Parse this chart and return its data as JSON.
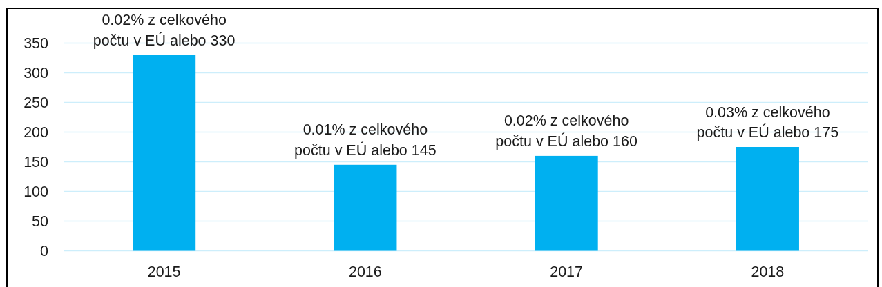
{
  "chart_data": {
    "type": "bar",
    "categories": [
      "2015",
      "2016",
      "2017",
      "2018"
    ],
    "values": [
      330,
      145,
      160,
      175
    ],
    "color": "#00b0f0",
    "ylim": [
      0,
      350
    ],
    "yticks": [
      0,
      50,
      100,
      150,
      200,
      250,
      300,
      350
    ],
    "grid": "y",
    "value_labels": [
      "0.02% z celkového počtu v EÚ alebo 330",
      "0.01% z celkového počtu v EÚ alebo 145",
      "0.02% z celkového počtu v EÚ alebo 160",
      "0.03% z celkového počtu v EÚ alebo 175"
    ]
  }
}
